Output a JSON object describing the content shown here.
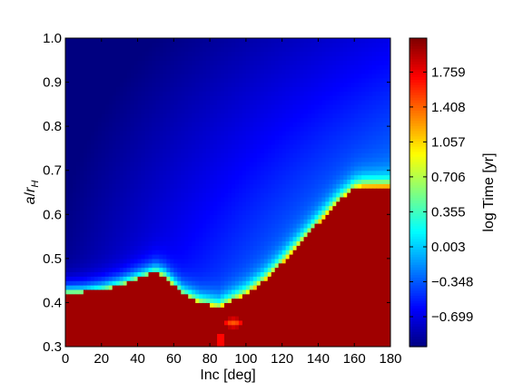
{
  "chart_data": {
    "type": "heatmap",
    "title": "",
    "xlabel": "Inc [deg]",
    "ylabel": "a/r_H",
    "ylabel_parts": {
      "a": "a",
      "slash": "/",
      "r": "r",
      "sub": "H"
    },
    "xlim": [
      0,
      180
    ],
    "ylim": [
      0.3,
      1.0
    ],
    "xticks": [
      0,
      20,
      40,
      60,
      80,
      100,
      120,
      140,
      160,
      180
    ],
    "xtick_labels": [
      "0",
      "20",
      "40",
      "60",
      "80",
      "100",
      "120",
      "140",
      "160",
      "180"
    ],
    "yticks": [
      0.3,
      0.4,
      0.5,
      0.6,
      0.7,
      0.8,
      0.9,
      1.0
    ],
    "ytick_labels": [
      "0.3",
      "0.4",
      "0.5",
      "0.6",
      "0.7",
      "0.8",
      "0.9",
      "1.0"
    ],
    "colorbar": {
      "label": "log Time [yr]",
      "range": [
        -1.0,
        2.1
      ],
      "ticks": [
        -0.699,
        -0.348,
        0.003,
        0.355,
        0.706,
        1.057,
        1.408,
        1.759
      ],
      "tick_labels": [
        "−0.699",
        "−0.348",
        "0.003",
        "0.355",
        "0.706",
        "1.057",
        "1.408",
        "1.759"
      ],
      "colormap": "jet"
    },
    "stability_boundary": {
      "description_values_inc": [
        0,
        10,
        20,
        30,
        40,
        50,
        55,
        60,
        65,
        70,
        75,
        80,
        85,
        90,
        95,
        100,
        110,
        120,
        130,
        140,
        150,
        160,
        165,
        170,
        180
      ],
      "a_over_rH": [
        0.425,
        0.425,
        0.43,
        0.44,
        0.455,
        0.47,
        0.46,
        0.44,
        0.42,
        0.41,
        0.4,
        0.395,
        0.39,
        0.4,
        0.41,
        0.42,
        0.45,
        0.49,
        0.535,
        0.58,
        0.625,
        0.66,
        0.665,
        0.665,
        0.665
      ]
    },
    "unstable_log_time_cap": 2.0,
    "grid": false
  }
}
